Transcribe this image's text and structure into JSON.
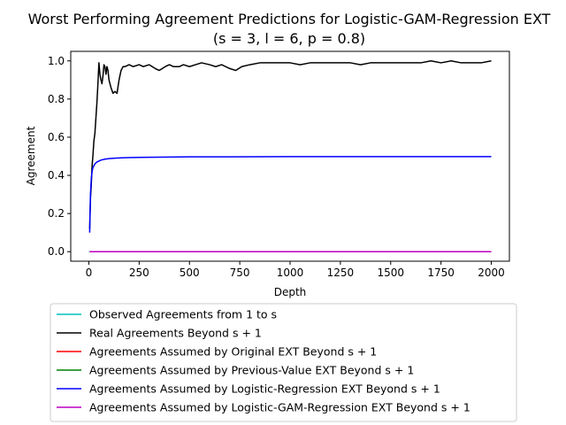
{
  "chart_data": {
    "type": "line",
    "title": "Worst Performing Agreement Predictions for Logistic-GAM-Regression EXT",
    "subtitle": "(s = 3, l = 6, p = 0.8)",
    "xlabel": "Depth",
    "ylabel": "Agreement",
    "xlim": [
      -90,
      2090
    ],
    "ylim": [
      -0.05,
      1.05
    ],
    "xticks": [
      0,
      250,
      500,
      750,
      1000,
      1250,
      1500,
      1750,
      2000
    ],
    "yticks": [
      0.0,
      0.2,
      0.4,
      0.6,
      0.8,
      1.0
    ],
    "grid": false,
    "legend_position": "below",
    "series": [
      {
        "name": "Observed Agreements from 1 to s",
        "color": "#00bfbf",
        "x": [
          1,
          2,
          3
        ],
        "y": [
          0.0,
          0.0,
          0.0
        ]
      },
      {
        "name": "Real Agreements Beyond s + 1",
        "color": "#000000",
        "x": [
          4,
          8,
          12,
          16,
          20,
          25,
          30,
          35,
          40,
          45,
          50,
          55,
          60,
          65,
          70,
          75,
          80,
          85,
          90,
          95,
          100,
          110,
          120,
          130,
          140,
          150,
          160,
          170,
          180,
          200,
          220,
          250,
          270,
          300,
          330,
          350,
          380,
          400,
          420,
          450,
          470,
          500,
          530,
          560,
          600,
          630,
          660,
          700,
          730,
          760,
          800,
          850,
          900,
          950,
          1000,
          1050,
          1100,
          1150,
          1200,
          1250,
          1300,
          1350,
          1400,
          1450,
          1500,
          1550,
          1600,
          1650,
          1700,
          1750,
          1800,
          1850,
          1900,
          1950,
          2000
        ],
        "y": [
          0.12,
          0.28,
          0.35,
          0.45,
          0.5,
          0.58,
          0.62,
          0.7,
          0.78,
          0.88,
          0.99,
          0.93,
          0.9,
          0.88,
          0.92,
          0.98,
          0.97,
          0.93,
          0.97,
          0.95,
          0.9,
          0.86,
          0.83,
          0.84,
          0.83,
          0.9,
          0.95,
          0.97,
          0.97,
          0.98,
          0.97,
          0.98,
          0.97,
          0.98,
          0.96,
          0.95,
          0.97,
          0.98,
          0.97,
          0.97,
          0.98,
          0.97,
          0.98,
          0.99,
          0.98,
          0.97,
          0.98,
          0.96,
          0.95,
          0.97,
          0.98,
          0.99,
          0.99,
          0.99,
          0.99,
          0.98,
          0.99,
          0.99,
          0.99,
          0.99,
          0.99,
          0.98,
          0.99,
          0.99,
          0.99,
          0.99,
          0.99,
          0.99,
          1.0,
          0.99,
          1.0,
          0.99,
          0.99,
          0.99,
          1.0
        ]
      },
      {
        "name": "Agreements Assumed by Original EXT Beyond s + 1",
        "color": "#ff0000",
        "x": [
          4,
          2000
        ],
        "y": [
          0.0,
          0.0
        ]
      },
      {
        "name": "Agreements Assumed by Previous-Value EXT Beyond s + 1",
        "color": "#008000",
        "x": [
          4,
          2000
        ],
        "y": [
          0.0,
          0.0
        ]
      },
      {
        "name": "Agreements Assumed by Logistic-Regression EXT Beyond s + 1",
        "color": "#0000ff",
        "x": [
          4,
          8,
          12,
          16,
          20,
          30,
          40,
          50,
          60,
          80,
          100,
          130,
          160,
          200,
          250,
          300,
          400,
          500,
          700,
          1000,
          1500,
          2000
        ],
        "y": [
          0.1,
          0.3,
          0.38,
          0.42,
          0.44,
          0.46,
          0.47,
          0.475,
          0.48,
          0.485,
          0.488,
          0.49,
          0.492,
          0.493,
          0.494,
          0.495,
          0.496,
          0.497,
          0.497,
          0.498,
          0.498,
          0.498
        ]
      },
      {
        "name": "Agreements Assumed by Logistic-GAM-Regression EXT Beyond s + 1",
        "color": "#bf00bf",
        "x": [
          4,
          2000
        ],
        "y": [
          0.0,
          0.0
        ]
      }
    ]
  }
}
